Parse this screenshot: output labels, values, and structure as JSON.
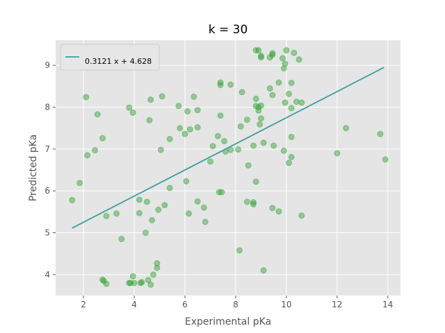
{
  "chart_data": {
    "type": "scatter",
    "title": "k = 30",
    "xlabel": "Experimental pKa",
    "ylabel": "Predicted pKa",
    "xlim": [
      0.9,
      14.5
    ],
    "ylim": [
      3.5,
      9.6
    ],
    "xticks": [
      2,
      4,
      6,
      8,
      10,
      12,
      14
    ],
    "yticks": [
      4,
      5,
      6,
      7,
      8,
      9
    ],
    "grid": true,
    "legend_position": "top-left",
    "colors": {
      "points": "#2ca02c",
      "fit_line": "#3a9e9e",
      "background": "#e5e5e5",
      "grid": "#ffffff"
    },
    "fit_line": {
      "label": "0.3121 x + 4.628",
      "slope": 0.3121,
      "intercept": 4.628,
      "x_range": [
        1.55,
        13.85
      ]
    },
    "series": [
      {
        "points": [
          [
            1.55,
            5.78
          ],
          [
            1.85,
            6.19
          ],
          [
            2.1,
            8.24
          ],
          [
            2.15,
            6.85
          ],
          [
            2.45,
            6.97
          ],
          [
            2.55,
            7.83
          ],
          [
            2.75,
            7.26
          ],
          [
            2.75,
            3.88
          ],
          [
            2.8,
            3.85
          ],
          [
            2.9,
            5.4
          ],
          [
            2.9,
            3.78
          ],
          [
            3.3,
            5.46
          ],
          [
            3.5,
            4.85
          ],
          [
            3.8,
            7.99
          ],
          [
            3.8,
            3.8
          ],
          [
            3.85,
            3.8
          ],
          [
            3.95,
            7.87
          ],
          [
            3.95,
            3.96
          ],
          [
            4.0,
            3.8
          ],
          [
            4.2,
            5.79
          ],
          [
            4.2,
            5.47
          ],
          [
            4.25,
            3.8
          ],
          [
            4.3,
            3.82
          ],
          [
            4.45,
            5.0
          ],
          [
            4.5,
            5.74
          ],
          [
            4.55,
            3.87
          ],
          [
            4.6,
            7.69
          ],
          [
            4.65,
            8.18
          ],
          [
            4.65,
            3.76
          ],
          [
            4.7,
            5.3
          ],
          [
            4.75,
            4.0
          ],
          [
            4.9,
            4.16
          ],
          [
            4.9,
            4.27
          ],
          [
            4.95,
            5.55
          ],
          [
            5.05,
            6.98
          ],
          [
            5.1,
            8.26
          ],
          [
            5.2,
            5.66
          ],
          [
            5.4,
            7.24
          ],
          [
            5.4,
            6.07
          ],
          [
            5.75,
            8.03
          ],
          [
            5.8,
            7.5
          ],
          [
            6.0,
            7.36
          ],
          [
            6.05,
            6.23
          ],
          [
            6.1,
            7.9
          ],
          [
            6.15,
            5.46
          ],
          [
            6.2,
            7.47
          ],
          [
            6.35,
            8.25
          ],
          [
            6.5,
            7.93
          ],
          [
            6.5,
            7.52
          ],
          [
            6.5,
            5.75
          ],
          [
            6.75,
            5.6
          ],
          [
            6.8,
            5.26
          ],
          [
            7.0,
            6.7
          ],
          [
            7.1,
            7.07
          ],
          [
            7.3,
            7.31
          ],
          [
            7.35,
            5.97
          ],
          [
            7.4,
            8.59
          ],
          [
            7.4,
            8.53
          ],
          [
            7.4,
            7.8
          ],
          [
            7.45,
            5.97
          ],
          [
            7.55,
            7.19
          ],
          [
            7.6,
            6.94
          ],
          [
            7.8,
            8.54
          ],
          [
            7.8,
            6.98
          ],
          [
            8.1,
            6.99
          ],
          [
            8.15,
            4.58
          ],
          [
            8.2,
            7.54
          ],
          [
            8.25,
            8.36
          ],
          [
            8.45,
            7.7
          ],
          [
            8.45,
            5.74
          ],
          [
            8.5,
            6.61
          ],
          [
            8.7,
            7.08
          ],
          [
            8.7,
            5.73
          ],
          [
            8.7,
            5.68
          ],
          [
            8.8,
            9.36
          ],
          [
            8.8,
            8.2
          ],
          [
            8.8,
            8.03
          ],
          [
            8.8,
            6.22
          ],
          [
            8.9,
            9.36
          ],
          [
            8.9,
            8.0
          ],
          [
            8.9,
            7.92
          ],
          [
            8.95,
            7.59
          ],
          [
            9.0,
            9.19
          ],
          [
            9.0,
            9.23
          ],
          [
            9.0,
            8.04
          ],
          [
            9.0,
            7.73
          ],
          [
            9.1,
            7.15
          ],
          [
            9.1,
            4.1
          ],
          [
            9.35,
            9.19
          ],
          [
            9.35,
            8.45
          ],
          [
            9.45,
            9.25
          ],
          [
            9.45,
            9.29
          ],
          [
            9.45,
            8.29
          ],
          [
            9.45,
            5.59
          ],
          [
            9.5,
            7.08
          ],
          [
            9.7,
            8.59
          ],
          [
            9.7,
            5.51
          ],
          [
            9.85,
            9.17
          ],
          [
            9.9,
            8.93
          ],
          [
            9.9,
            6.96
          ],
          [
            9.95,
            9.04
          ],
          [
            9.95,
            8.11
          ],
          [
            10.0,
            9.36
          ],
          [
            10.1,
            8.32
          ],
          [
            10.1,
            6.67
          ],
          [
            10.2,
            8.58
          ],
          [
            10.2,
            7.98
          ],
          [
            10.2,
            7.29
          ],
          [
            10.2,
            6.81
          ],
          [
            10.3,
            9.3
          ],
          [
            10.4,
            8.13
          ],
          [
            10.5,
            9.14
          ],
          [
            10.6,
            8.11
          ],
          [
            10.6,
            5.41
          ],
          [
            12.0,
            6.9
          ],
          [
            12.35,
            7.5
          ],
          [
            13.7,
            7.36
          ],
          [
            13.9,
            6.75
          ]
        ]
      }
    ]
  }
}
